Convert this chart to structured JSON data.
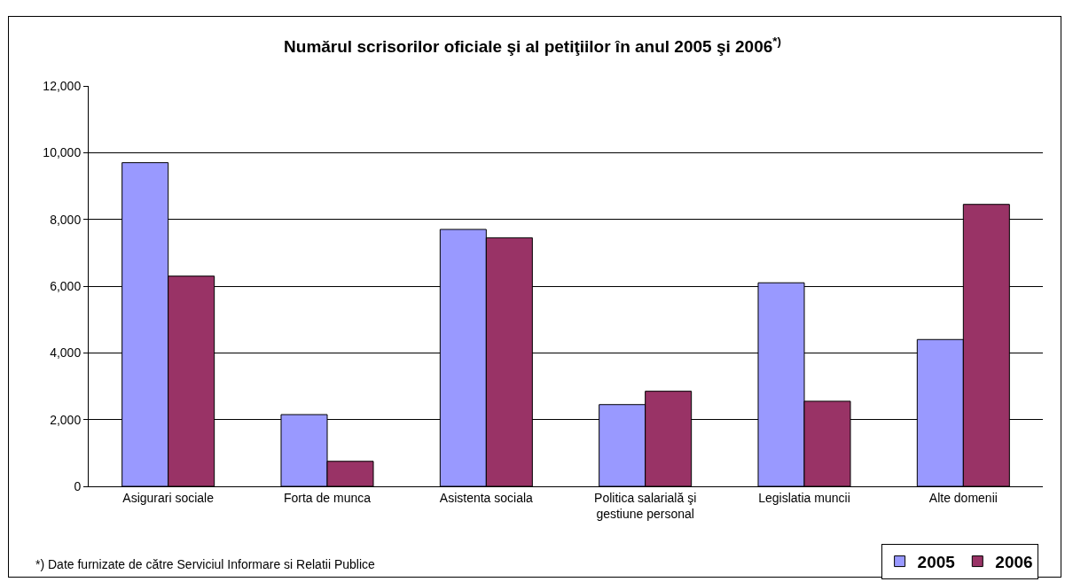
{
  "chart_data": {
    "type": "bar",
    "title": "Numărul scrisorilor oficiale şi al petiţiilor în anul 2005 şi 2006$^{*)}$",
    "categories": [
      "Asigurari sociale",
      "Forta de munca",
      "Asistenta sociala",
      "Politica salarială şi gestiune personal",
      "Legislatia muncii",
      "Alte domenii"
    ],
    "series": [
      {
        "name": "2005",
        "color": "#9999ff",
        "values": [
          9700,
          2150,
          7700,
          2450,
          6100,
          4400
        ]
      },
      {
        "name": "2006",
        "color": "#993366",
        "values": [
          6300,
          750,
          7450,
          2850,
          2550,
          8450
        ]
      }
    ],
    "ylim": [
      0,
      12000
    ],
    "yticks": [
      {
        "value": 0,
        "label": "0"
      },
      {
        "value": 2000,
        "label": "2,000"
      },
      {
        "value": 4000,
        "label": "4,000"
      },
      {
        "value": 6000,
        "label": "6,000"
      },
      {
        "value": 8000,
        "label": "8,000"
      },
      {
        "value": 10000,
        "label": "10,000"
      },
      {
        "value": 12000,
        "label": "12,000"
      }
    ],
    "grid": "y",
    "legend": "bottom right",
    "annotations": [
      "*) Date furnizate de către Serviciul Informare si Relatii Publice"
    ]
  }
}
